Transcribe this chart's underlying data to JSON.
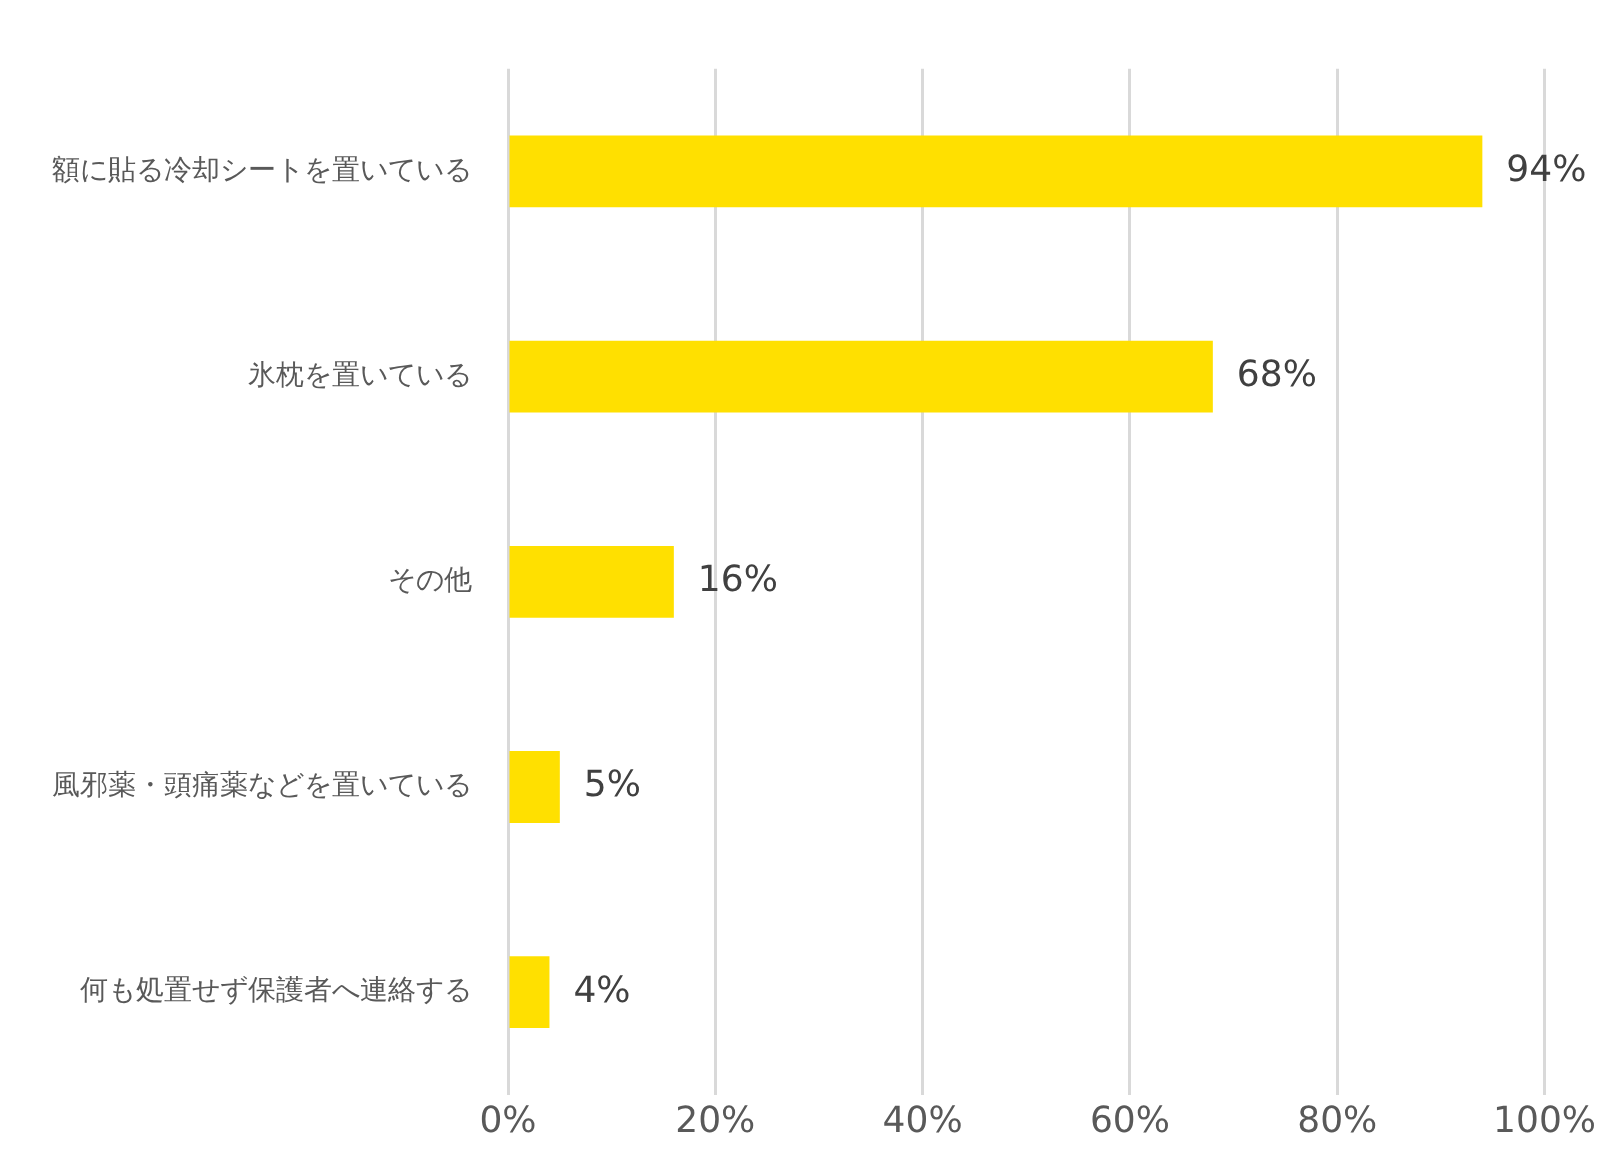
{
  "chart_data": {
    "type": "bar",
    "orientation": "horizontal",
    "categories": [
      "額に貼る冷却シートを置いている",
      "氷枕を置いている",
      "その他",
      "風邪薬・頭痛薬などを置いている",
      "何も処置せず保護者へ連絡する"
    ],
    "values": [
      94,
      68,
      16,
      5,
      4
    ],
    "value_labels": [
      "94%",
      "68%",
      "16%",
      "5%",
      "4%"
    ],
    "color": "#ffe000",
    "xlim": [
      0,
      100
    ],
    "xticks": [
      {
        "value": 0,
        "label": "0%"
      },
      {
        "value": 20,
        "label": "20%"
      },
      {
        "value": 40,
        "label": "40%"
      },
      {
        "value": 60,
        "label": "60%"
      },
      {
        "value": 80,
        "label": "80%"
      },
      {
        "value": 100,
        "label": "100%"
      }
    ],
    "grid": "x",
    "legend": false
  }
}
